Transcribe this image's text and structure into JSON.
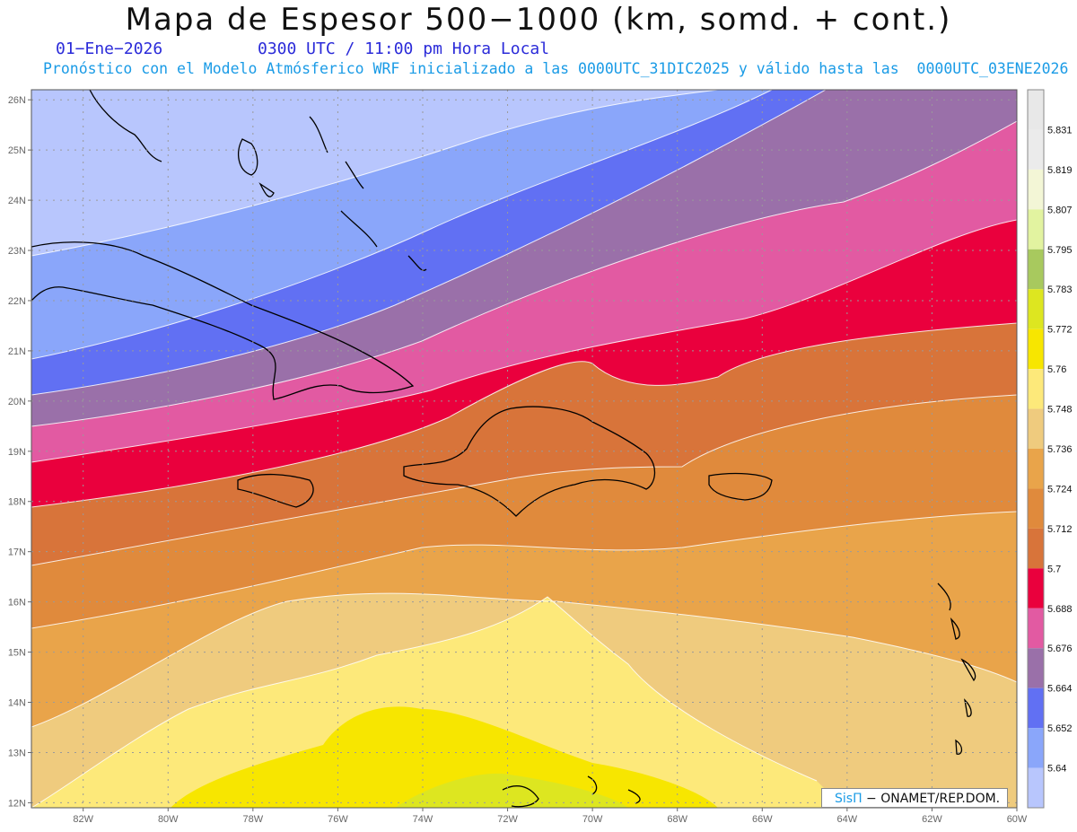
{
  "header": {
    "title": "Mapa de Espesor 500−1000 (km, somd. + cont.)",
    "date": "01−Ene−2026",
    "time": "0300 UTC / 11:00 pm Hora Local",
    "forecast_info": "Pronóstico con el Modelo Atmósferico WRF inicializado a las 0000UTC_31DIC2025 y válido hasta las  0000UTC_03ENE2026"
  },
  "axes": {
    "lat_labels": [
      "26N",
      "25N",
      "24N",
      "23N",
      "22N",
      "21N",
      "20N",
      "19N",
      "18N",
      "17N",
      "16N",
      "15N",
      "14N",
      "13N",
      "12N"
    ],
    "lon_labels": [
      "82W",
      "80W",
      "78W",
      "76W",
      "74W",
      "72W",
      "70W",
      "68W",
      "66W",
      "64W",
      "62W",
      "60W"
    ]
  },
  "colorbar": {
    "labels": [
      "5.831",
      "5.819",
      "5.807",
      "5.795",
      "5.783",
      "5.772",
      "5.76",
      "5.748",
      "5.736",
      "5.724",
      "5.712",
      "5.7",
      "5.688",
      "5.676",
      "5.664",
      "5.652",
      "5.64"
    ],
    "colors": [
      "#ebebeb",
      "#f3f6d6",
      "#e2f3a0",
      "#a8c95e",
      "#dde620",
      "#f7e600",
      "#fde97a",
      "#efcb7e",
      "#e9a44a",
      "#e08a3c",
      "#d8743a",
      "#ea003d",
      "#e25aa2",
      "#9a70a9",
      "#6170f3",
      "#8aa6fa",
      "#b8c6fd"
    ]
  },
  "attribution": {
    "sis": "SisΠ",
    "text": " − ONAMET/REP.DOM."
  }
}
